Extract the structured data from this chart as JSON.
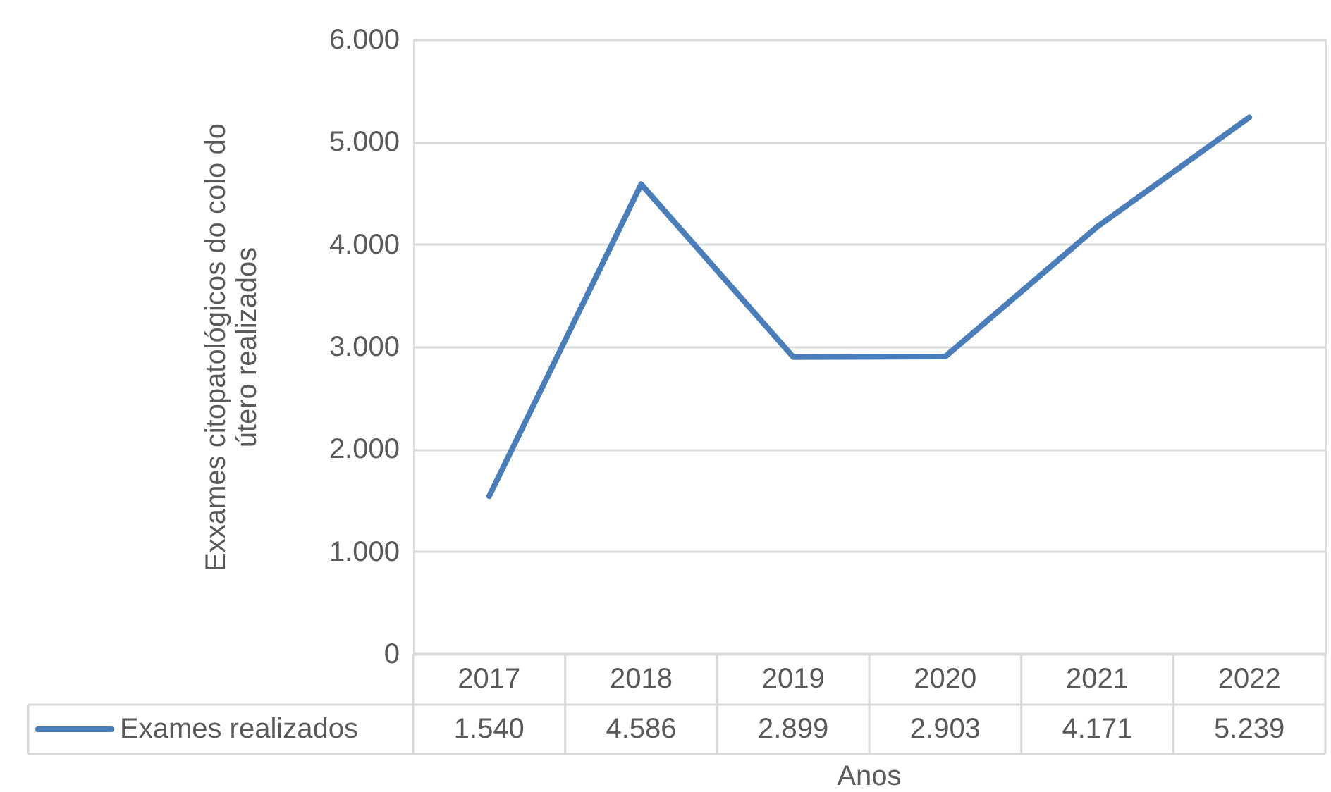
{
  "chart_data": {
    "type": "line",
    "xlabel": "Anos",
    "ylabel": "Exxames citopatológicos do colo do útero realizados",
    "categories": [
      "2017",
      "2018",
      "2019",
      "2020",
      "2021",
      "2022"
    ],
    "series": [
      {
        "name": "Exames realizados",
        "color": "#4a7ebb",
        "values": [
          1540,
          4586,
          2899,
          2903,
          4171,
          5239
        ],
        "value_labels": [
          "1.540",
          "4.586",
          "2.899",
          "2.903",
          "4.171",
          "5.239"
        ]
      }
    ],
    "ylim": [
      0,
      6000
    ],
    "yticks": [
      0,
      {
        "value": 1000,
        "label": "1.000"
      },
      {
        "value": 2000,
        "label": "2.000"
      },
      {
        "value": 3000,
        "label": "3.000"
      },
      {
        "value": 4000,
        "label": "4.000"
      },
      {
        "value": 5000,
        "label": "5.000"
      },
      {
        "value": 6000,
        "label": "6.000"
      }
    ],
    "grid": "y",
    "legend": "bottom left",
    "marker": "none",
    "line_style": "solid"
  }
}
